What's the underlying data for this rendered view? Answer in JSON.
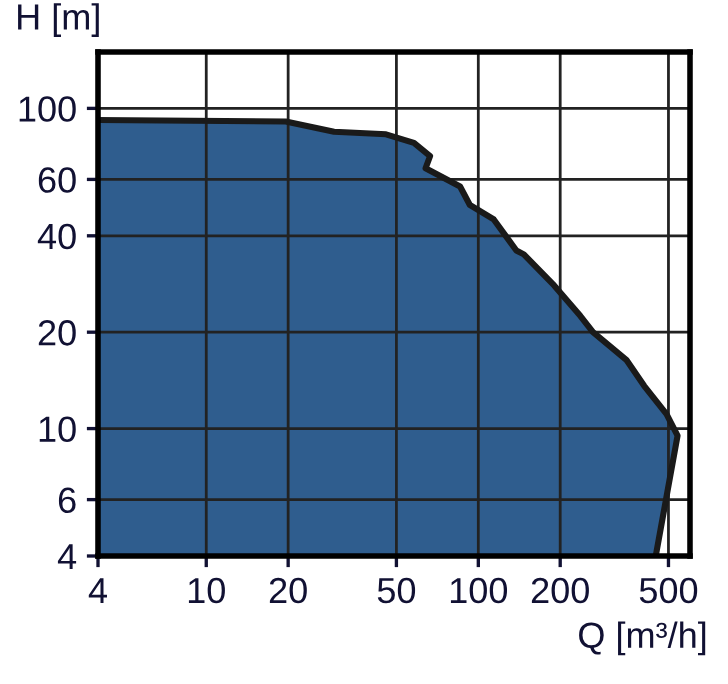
{
  "chart_data": {
    "type": "area",
    "xlabel": "Q [m³/h]",
    "ylabel": "H [m]",
    "log": "xy",
    "xlim": [
      4,
      600
    ],
    "ylim": [
      4,
      150
    ],
    "xticks": [
      4,
      10,
      20,
      50,
      100,
      200,
      500
    ],
    "yticks": [
      4,
      6,
      10,
      20,
      40,
      60,
      100
    ],
    "grid": true,
    "legend": false,
    "series": [
      {
        "color": "#2f5d8e",
        "x": [
          4,
          19.6,
          29.5,
          45.8,
          58,
          66.5,
          64,
          85.7,
          93,
          114,
          138,
          147,
          190,
          237,
          264,
          350,
          407,
          492,
          540,
          449
        ],
        "values": [
          92,
          91,
          84.5,
          83,
          78,
          71,
          65,
          57,
          50,
          45,
          36,
          35,
          28,
          22.5,
          20,
          16.4,
          13.6,
          11.1,
          9.5,
          4
        ]
      }
    ]
  }
}
